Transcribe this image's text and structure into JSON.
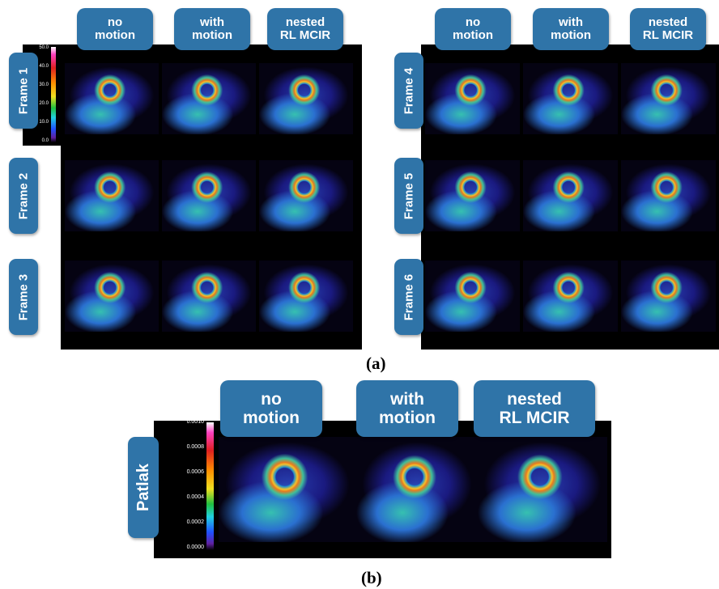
{
  "panel_a": {
    "left": {
      "columns": [
        "no\nmotion",
        "with\nmotion",
        "nested\nRL MCIR"
      ],
      "rows": [
        "Frame 1",
        "Frame 2",
        "Frame 3"
      ]
    },
    "right": {
      "columns": [
        "no\nmotion",
        "with\nmotion",
        "nested\nRL MCIR"
      ],
      "rows": [
        "Frame 4",
        "Frame 5",
        "Frame 6"
      ]
    },
    "colorbar_ticks": [
      "50.0",
      "40.0",
      "30.0",
      "20.0",
      "10.0",
      "0.0"
    ],
    "caption": "(a)"
  },
  "panel_b": {
    "columns": [
      "no\nmotion",
      "with\nmotion",
      "nested\nRL MCIR"
    ],
    "row": "Patlak",
    "colorbar_ticks": [
      "0.0010",
      "0.0008",
      "0.0006",
      "0.0004",
      "0.0002",
      "0.0000"
    ],
    "caption": "(b)"
  }
}
